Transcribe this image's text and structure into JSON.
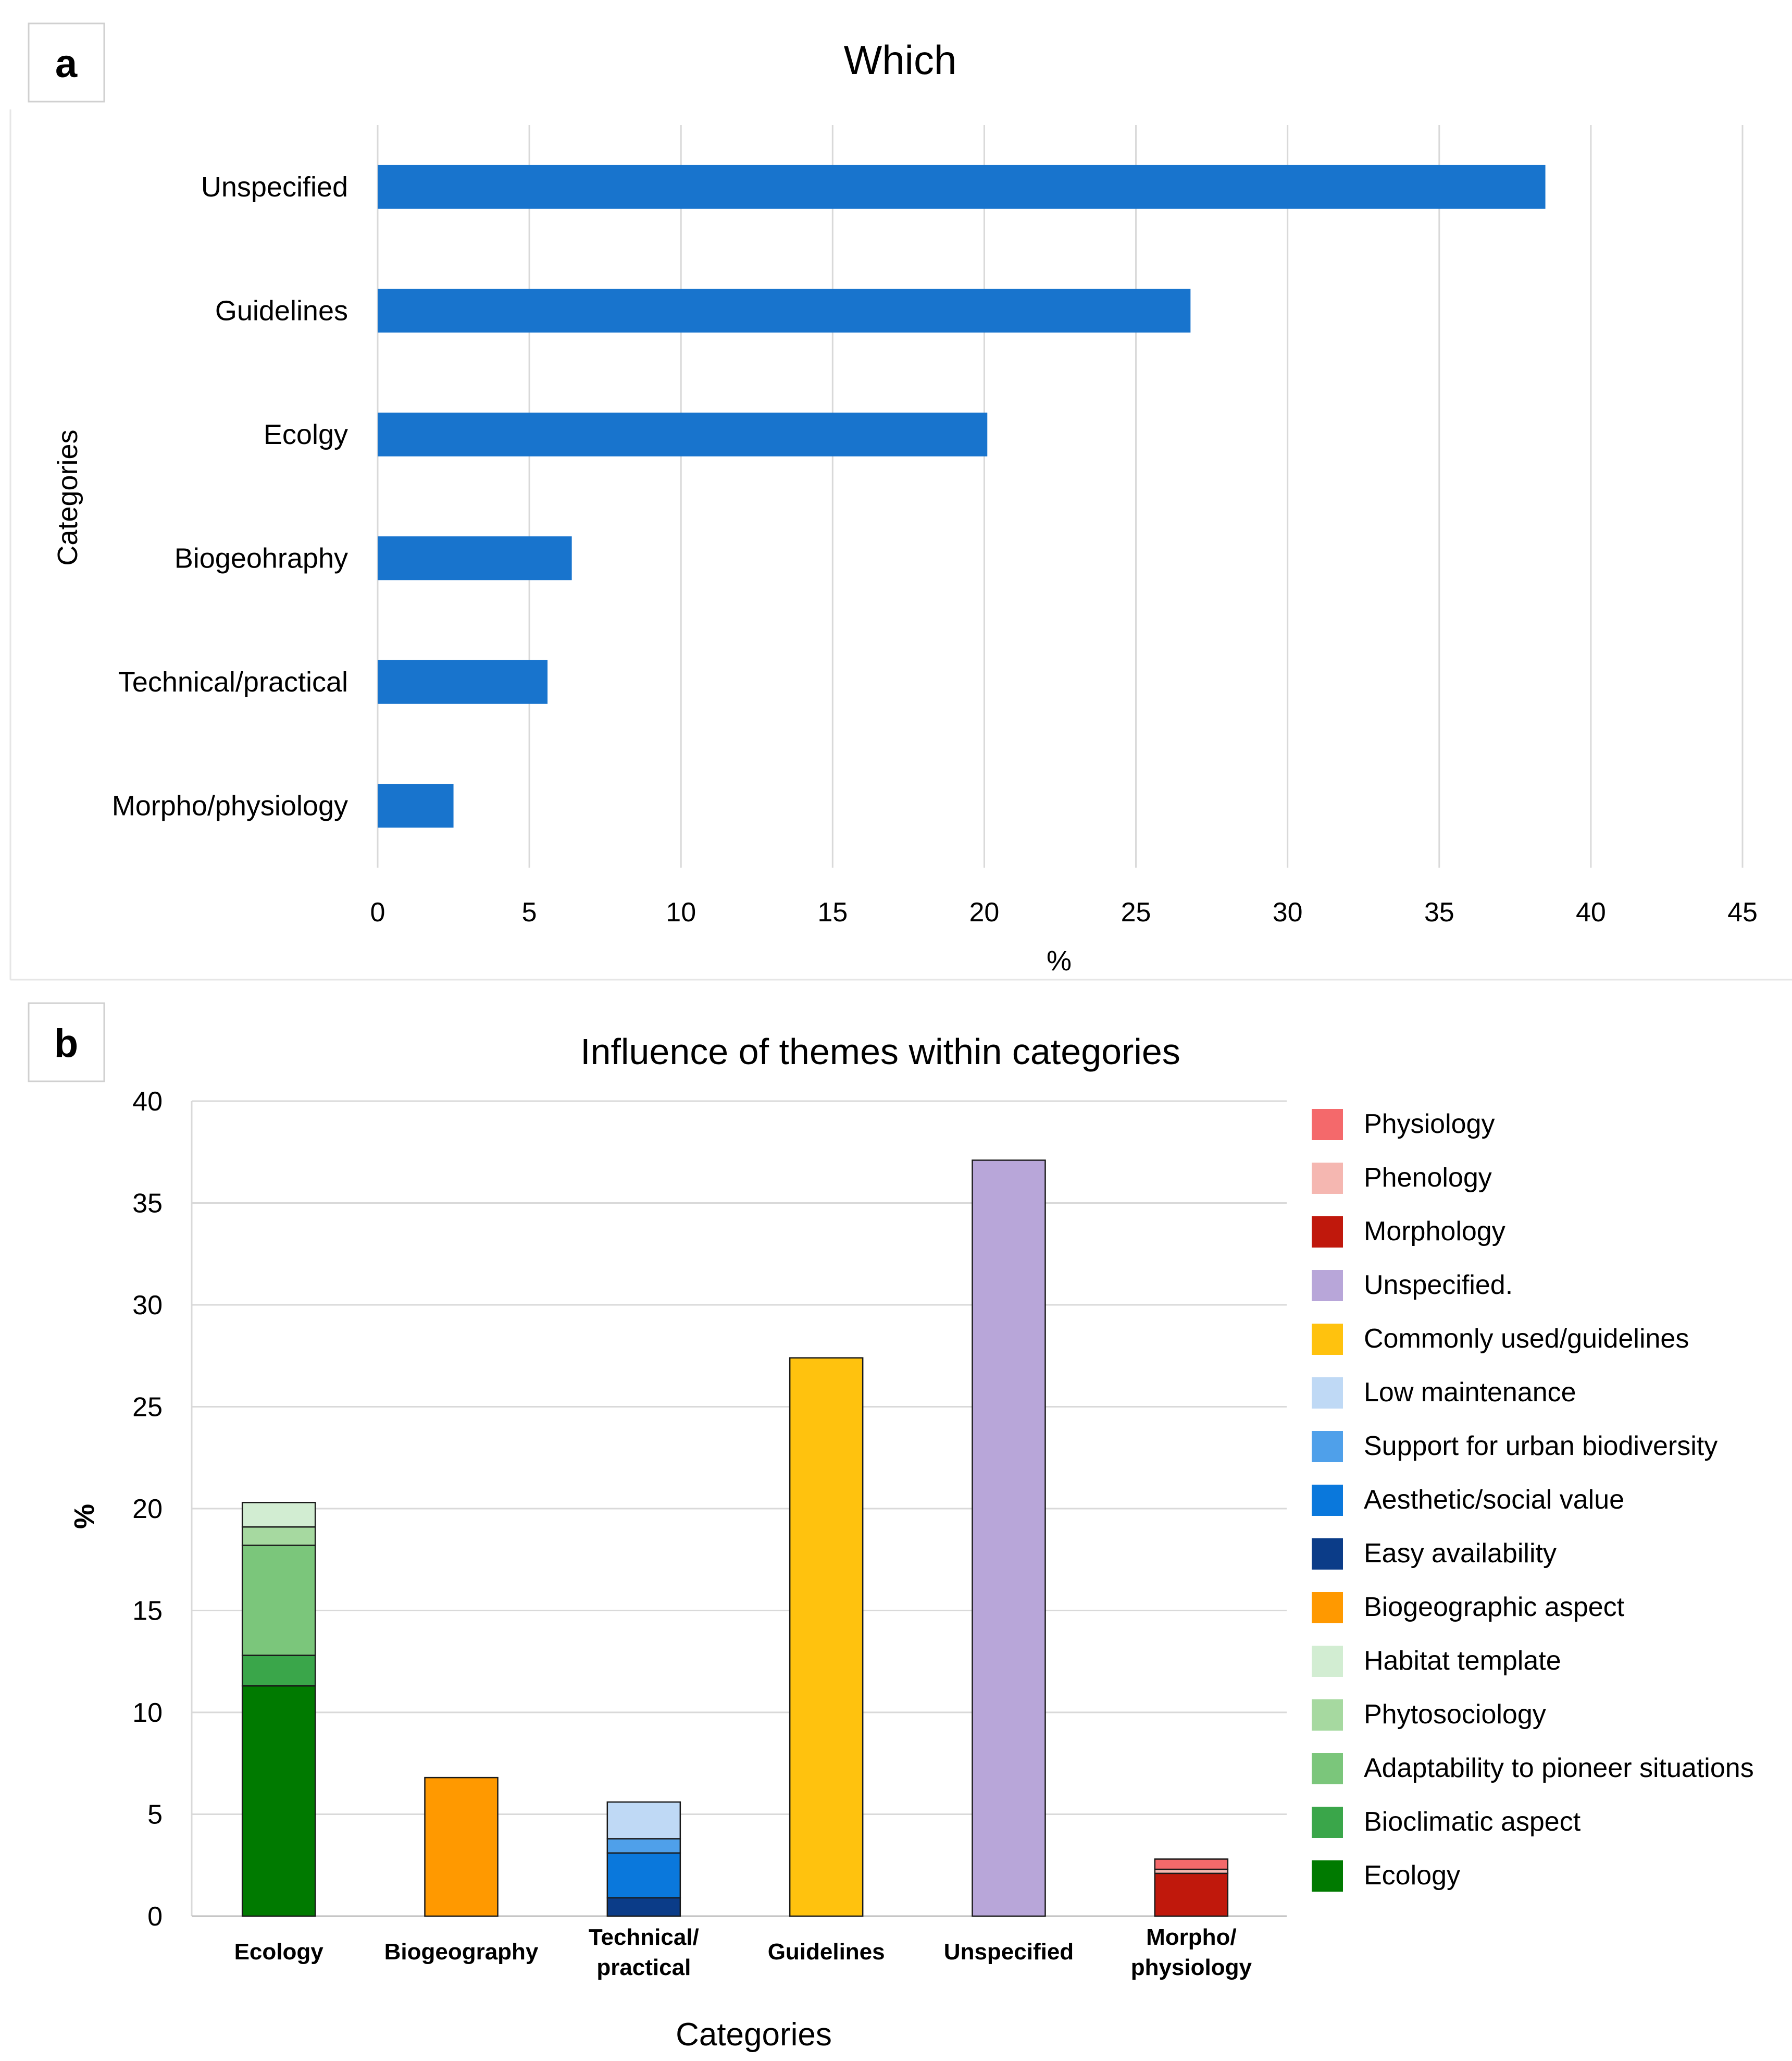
{
  "panels": {
    "a": {
      "label": "a"
    },
    "b": {
      "label": "b"
    }
  },
  "chart_data": [
    {
      "id": "a",
      "type": "bar",
      "orientation": "horizontal",
      "title": "Which",
      "xlabel": "%",
      "ylabel": "Categories",
      "categories": [
        "Unspecified",
        "Guidelines",
        "Ecolgy",
        "Biogeohraphy",
        "Technical/practical",
        "Morpho/physiology"
      ],
      "values": [
        38.5,
        26.8,
        20.1,
        6.4,
        5.6,
        2.5
      ],
      "xlim": [
        0,
        45
      ],
      "xticks": [
        "0",
        "5",
        "10",
        "15",
        "20",
        "25",
        "30",
        "35",
        "40",
        "45"
      ],
      "grid": true,
      "bar_color": "#1874CD"
    },
    {
      "id": "b",
      "type": "bar",
      "stacked": true,
      "title": "Influence of themes within categories",
      "xlabel": "Categories",
      "ylabel": "%",
      "ylim": [
        0,
        40
      ],
      "yticks": [
        "0",
        "5",
        "10",
        "15",
        "20",
        "25",
        "30",
        "35",
        "40"
      ],
      "categories": [
        "Ecology",
        "Biogeography",
        "Technical/\npractical",
        "Guidelines",
        "Unspecified",
        "Morpho/\nphysiology"
      ],
      "grid": true,
      "legend_position": "right",
      "series": [
        {
          "name": "Physiology",
          "color": "#F4696B",
          "values": [
            0,
            0,
            0,
            0,
            0,
            0.5
          ]
        },
        {
          "name": "Phenology",
          "color": "#F5B7B1",
          "values": [
            0,
            0,
            0,
            0,
            0,
            0.2
          ]
        },
        {
          "name": "Morphology",
          "color": "#C0180C",
          "values": [
            0,
            0,
            0,
            0,
            0,
            2.1
          ]
        },
        {
          "name": "Unspecified.",
          "color": "#B8A6D9",
          "values": [
            0,
            0,
            0,
            0,
            37.1,
            0
          ]
        },
        {
          "name": "Commonly used/guidelines",
          "color": "#FFC20E",
          "values": [
            0,
            0,
            0,
            27.4,
            0,
            0
          ]
        },
        {
          "name": "Low maintenance",
          "color": "#BFD9F5",
          "values": [
            0,
            0,
            1.8,
            0,
            0,
            0
          ]
        },
        {
          "name": "Support for urban biodiversity",
          "color": "#4FA0EA",
          "values": [
            0,
            0,
            0.7,
            0,
            0,
            0
          ]
        },
        {
          "name": "Aesthetic/social value",
          "color": "#0A78DC",
          "values": [
            0,
            0,
            2.2,
            0,
            0,
            0
          ]
        },
        {
          "name": "Easy availability",
          "color": "#0B3C88",
          "values": [
            0,
            0,
            0.9,
            0,
            0,
            0
          ]
        },
        {
          "name": "Biogeographic aspect",
          "color": "#FF9900",
          "values": [
            0,
            6.8,
            0,
            0,
            0,
            0
          ]
        },
        {
          "name": "Habitat template",
          "color": "#D2EDD2",
          "values": [
            1.2,
            0,
            0,
            0,
            0,
            0
          ]
        },
        {
          "name": "Phytosociology",
          "color": "#A6D9A0",
          "values": [
            0.9,
            0,
            0,
            0,
            0,
            0
          ]
        },
        {
          "name": "Adaptability to pioneer situations",
          "color": "#7BC67B",
          "values": [
            5.4,
            0,
            0,
            0,
            0,
            0
          ]
        },
        {
          "name": "Bioclimatic aspect",
          "color": "#3AA64A",
          "values": [
            1.5,
            0,
            0,
            0,
            0,
            0
          ]
        },
        {
          "name": "Ecology",
          "color": "#007A00",
          "values": [
            11.3,
            0,
            0,
            0,
            0,
            0
          ]
        }
      ]
    }
  ]
}
